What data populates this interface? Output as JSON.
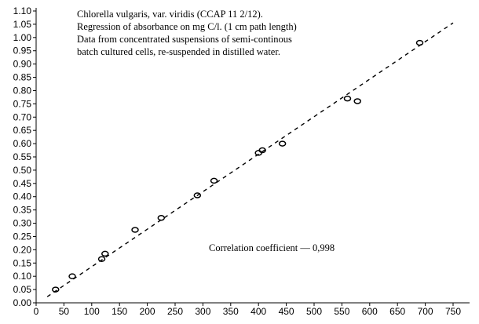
{
  "chart_data": {
    "type": "scatter",
    "title": "",
    "xlabel": "",
    "ylabel": "",
    "xlim": [
      0,
      750
    ],
    "ylim": [
      0,
      1.1
    ],
    "x_ticks": [
      "0",
      "50",
      "100",
      "150",
      "200",
      "250",
      "300",
      "350",
      "400",
      "450",
      "500",
      "550",
      "600",
      "650",
      "700",
      "750"
    ],
    "y_ticks": [
      "0.00",
      "0.05",
      "0.10",
      "0.15",
      "0.20",
      "0.25",
      "0.30",
      "0.35",
      "0.40",
      "0.45",
      "0.50",
      "0.55",
      "0.60",
      "0.65",
      "0.70",
      "0.75",
      "0.80",
      "0.85",
      "0.90",
      "0.95",
      "1.00",
      "1.05",
      "1.10"
    ],
    "grid": false,
    "series": [
      {
        "marker": "open-circle",
        "points": [
          {
            "x": 35,
            "y": 0.05
          },
          {
            "x": 65,
            "y": 0.1
          },
          {
            "x": 118,
            "y": 0.165
          },
          {
            "x": 124,
            "y": 0.185
          },
          {
            "x": 178,
            "y": 0.275
          },
          {
            "x": 225,
            "y": 0.32
          },
          {
            "x": 290,
            "y": 0.405
          },
          {
            "x": 320,
            "y": 0.46
          },
          {
            "x": 400,
            "y": 0.565
          },
          {
            "x": 407,
            "y": 0.575
          },
          {
            "x": 443,
            "y": 0.6
          },
          {
            "x": 560,
            "y": 0.77
          },
          {
            "x": 578,
            "y": 0.76
          },
          {
            "x": 690,
            "y": 0.98
          }
        ]
      }
    ],
    "regression_line": {
      "style": "dashed",
      "x": [
        20,
        750
      ],
      "y": [
        0.023,
        1.055
      ]
    },
    "annotations": [
      "Chlorella vulgaris, var. viridis (CCAP 11 2/12).",
      "Regression of absorbance on mg C/l. (1 cm path length)",
      "Data from concentrated suspensions of semi-continous",
      "batch cultured cells, re-suspended in distilled water.",
      "Correlation coefficient — 0,998"
    ]
  }
}
